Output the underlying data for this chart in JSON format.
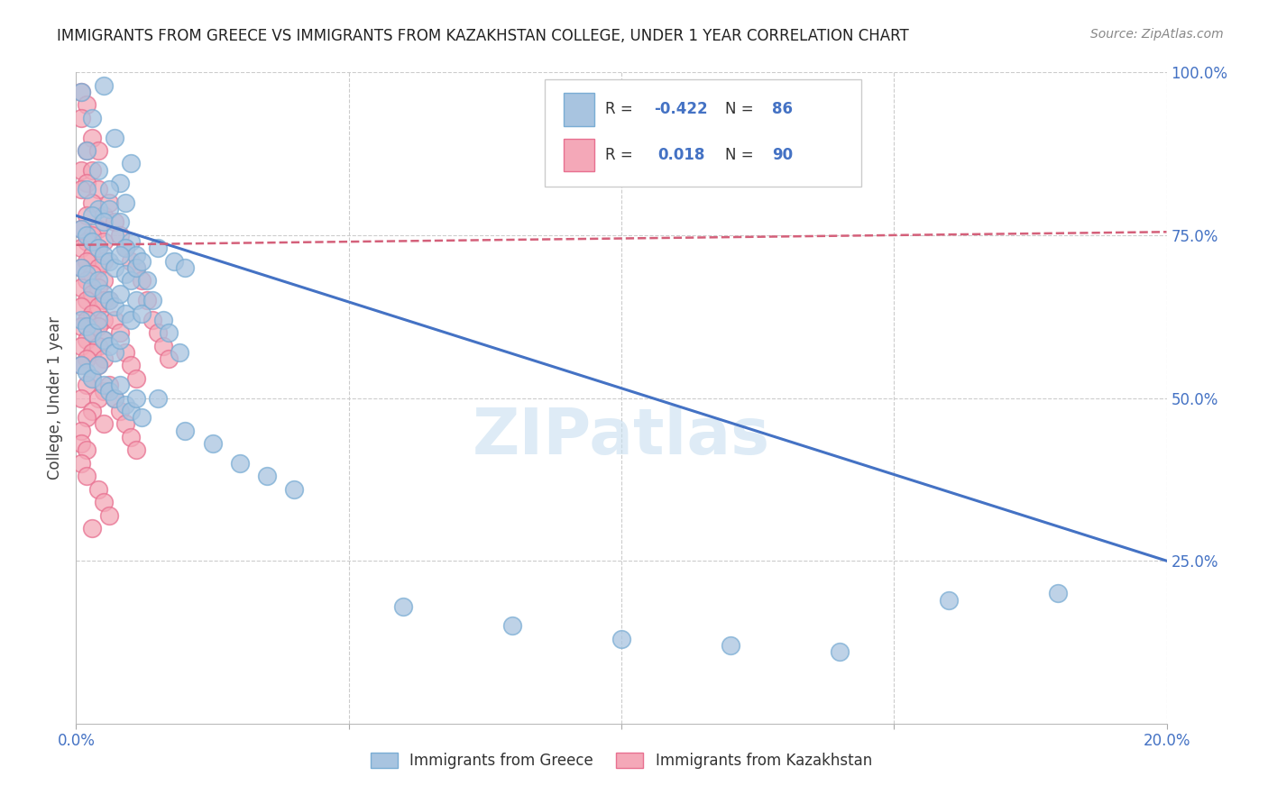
{
  "title": "IMMIGRANTS FROM GREECE VS IMMIGRANTS FROM KAZAKHSTAN COLLEGE, UNDER 1 YEAR CORRELATION CHART",
  "source": "Source: ZipAtlas.com",
  "ylabel": "College, Under 1 year",
  "xmin": 0.0,
  "xmax": 0.2,
  "ymin": 0.0,
  "ymax": 1.0,
  "greece_color": "#a8c4e0",
  "kazakhstan_color": "#f4a8b8",
  "greece_edge_color": "#7aadd4",
  "kazakhstan_edge_color": "#e87090",
  "greece_line_color": "#4472c4",
  "kazakhstan_line_color": "#d4607a",
  "watermark": "ZIPatlas",
  "legend_label_greece": "Immigrants from Greece",
  "legend_label_kazakhstan": "Immigrants from Kazakhstan",
  "greece_line_x0": 0.0,
  "greece_line_y0": 0.78,
  "greece_line_x1": 0.2,
  "greece_line_y1": 0.25,
  "kaz_line_x0": 0.0,
  "kaz_line_y0": 0.735,
  "kaz_line_x1": 0.2,
  "kaz_line_y1": 0.755,
  "greece_scatter": [
    [
      0.001,
      0.97
    ],
    [
      0.005,
      0.98
    ],
    [
      0.003,
      0.93
    ],
    [
      0.007,
      0.9
    ],
    [
      0.002,
      0.88
    ],
    [
      0.01,
      0.86
    ],
    [
      0.008,
      0.83
    ],
    [
      0.004,
      0.85
    ],
    [
      0.006,
      0.82
    ],
    [
      0.009,
      0.8
    ],
    [
      0.002,
      0.82
    ],
    [
      0.004,
      0.79
    ],
    [
      0.003,
      0.78
    ],
    [
      0.006,
      0.79
    ],
    [
      0.005,
      0.77
    ],
    [
      0.008,
      0.77
    ],
    [
      0.007,
      0.75
    ],
    [
      0.01,
      0.74
    ],
    [
      0.009,
      0.73
    ],
    [
      0.011,
      0.72
    ],
    [
      0.001,
      0.76
    ],
    [
      0.002,
      0.75
    ],
    [
      0.003,
      0.74
    ],
    [
      0.004,
      0.73
    ],
    [
      0.005,
      0.72
    ],
    [
      0.006,
      0.71
    ],
    [
      0.007,
      0.7
    ],
    [
      0.008,
      0.72
    ],
    [
      0.009,
      0.69
    ],
    [
      0.01,
      0.68
    ],
    [
      0.011,
      0.7
    ],
    [
      0.012,
      0.71
    ],
    [
      0.001,
      0.7
    ],
    [
      0.002,
      0.69
    ],
    [
      0.003,
      0.67
    ],
    [
      0.004,
      0.68
    ],
    [
      0.005,
      0.66
    ],
    [
      0.006,
      0.65
    ],
    [
      0.007,
      0.64
    ],
    [
      0.008,
      0.66
    ],
    [
      0.009,
      0.63
    ],
    [
      0.01,
      0.62
    ],
    [
      0.011,
      0.65
    ],
    [
      0.012,
      0.63
    ],
    [
      0.001,
      0.62
    ],
    [
      0.002,
      0.61
    ],
    [
      0.003,
      0.6
    ],
    [
      0.004,
      0.62
    ],
    [
      0.005,
      0.59
    ],
    [
      0.006,
      0.58
    ],
    [
      0.007,
      0.57
    ],
    [
      0.008,
      0.59
    ],
    [
      0.001,
      0.55
    ],
    [
      0.002,
      0.54
    ],
    [
      0.003,
      0.53
    ],
    [
      0.004,
      0.55
    ],
    [
      0.005,
      0.52
    ],
    [
      0.006,
      0.51
    ],
    [
      0.007,
      0.5
    ],
    [
      0.008,
      0.52
    ],
    [
      0.009,
      0.49
    ],
    [
      0.01,
      0.48
    ],
    [
      0.011,
      0.5
    ],
    [
      0.012,
      0.47
    ],
    [
      0.015,
      0.73
    ],
    [
      0.018,
      0.71
    ],
    [
      0.02,
      0.7
    ],
    [
      0.013,
      0.68
    ],
    [
      0.014,
      0.65
    ],
    [
      0.016,
      0.62
    ],
    [
      0.017,
      0.6
    ],
    [
      0.019,
      0.57
    ],
    [
      0.015,
      0.5
    ],
    [
      0.02,
      0.45
    ],
    [
      0.025,
      0.43
    ],
    [
      0.03,
      0.4
    ],
    [
      0.035,
      0.38
    ],
    [
      0.04,
      0.36
    ],
    [
      0.06,
      0.18
    ],
    [
      0.08,
      0.15
    ],
    [
      0.1,
      0.13
    ],
    [
      0.12,
      0.12
    ],
    [
      0.14,
      0.11
    ],
    [
      0.16,
      0.19
    ],
    [
      0.18,
      0.2
    ]
  ],
  "kazakhstan_scatter": [
    [
      0.001,
      0.97
    ],
    [
      0.002,
      0.95
    ],
    [
      0.001,
      0.93
    ],
    [
      0.003,
      0.9
    ],
    [
      0.002,
      0.88
    ],
    [
      0.004,
      0.88
    ],
    [
      0.001,
      0.85
    ],
    [
      0.003,
      0.85
    ],
    [
      0.002,
      0.83
    ],
    [
      0.001,
      0.82
    ],
    [
      0.004,
      0.82
    ],
    [
      0.003,
      0.8
    ],
    [
      0.002,
      0.78
    ],
    [
      0.005,
      0.78
    ],
    [
      0.001,
      0.76
    ],
    [
      0.004,
      0.76
    ],
    [
      0.003,
      0.75
    ],
    [
      0.002,
      0.74
    ],
    [
      0.005,
      0.74
    ],
    [
      0.001,
      0.73
    ],
    [
      0.004,
      0.73
    ],
    [
      0.003,
      0.72
    ],
    [
      0.002,
      0.71
    ],
    [
      0.005,
      0.71
    ],
    [
      0.001,
      0.7
    ],
    [
      0.004,
      0.7
    ],
    [
      0.003,
      0.69
    ],
    [
      0.002,
      0.68
    ],
    [
      0.005,
      0.68
    ],
    [
      0.001,
      0.67
    ],
    [
      0.004,
      0.67
    ],
    [
      0.003,
      0.66
    ],
    [
      0.002,
      0.65
    ],
    [
      0.005,
      0.65
    ],
    [
      0.001,
      0.64
    ],
    [
      0.004,
      0.64
    ],
    [
      0.003,
      0.63
    ],
    [
      0.002,
      0.62
    ],
    [
      0.005,
      0.62
    ],
    [
      0.001,
      0.61
    ],
    [
      0.004,
      0.61
    ],
    [
      0.003,
      0.6
    ],
    [
      0.002,
      0.59
    ],
    [
      0.005,
      0.59
    ],
    [
      0.001,
      0.58
    ],
    [
      0.004,
      0.58
    ],
    [
      0.003,
      0.57
    ],
    [
      0.002,
      0.56
    ],
    [
      0.005,
      0.56
    ],
    [
      0.001,
      0.55
    ],
    [
      0.004,
      0.55
    ],
    [
      0.003,
      0.53
    ],
    [
      0.002,
      0.52
    ],
    [
      0.005,
      0.51
    ],
    [
      0.001,
      0.5
    ],
    [
      0.004,
      0.5
    ],
    [
      0.003,
      0.48
    ],
    [
      0.002,
      0.47
    ],
    [
      0.005,
      0.46
    ],
    [
      0.001,
      0.45
    ],
    [
      0.001,
      0.43
    ],
    [
      0.002,
      0.42
    ],
    [
      0.001,
      0.4
    ],
    [
      0.002,
      0.38
    ],
    [
      0.006,
      0.8
    ],
    [
      0.007,
      0.77
    ],
    [
      0.008,
      0.75
    ],
    [
      0.009,
      0.73
    ],
    [
      0.01,
      0.71
    ],
    [
      0.011,
      0.7
    ],
    [
      0.006,
      0.65
    ],
    [
      0.007,
      0.62
    ],
    [
      0.008,
      0.6
    ],
    [
      0.009,
      0.57
    ],
    [
      0.01,
      0.55
    ],
    [
      0.011,
      0.53
    ],
    [
      0.006,
      0.52
    ],
    [
      0.007,
      0.5
    ],
    [
      0.008,
      0.48
    ],
    [
      0.009,
      0.46
    ],
    [
      0.01,
      0.44
    ],
    [
      0.011,
      0.42
    ],
    [
      0.012,
      0.68
    ],
    [
      0.013,
      0.65
    ],
    [
      0.014,
      0.62
    ],
    [
      0.015,
      0.6
    ],
    [
      0.016,
      0.58
    ],
    [
      0.017,
      0.56
    ],
    [
      0.004,
      0.36
    ],
    [
      0.005,
      0.34
    ],
    [
      0.006,
      0.32
    ],
    [
      0.003,
      0.3
    ]
  ]
}
